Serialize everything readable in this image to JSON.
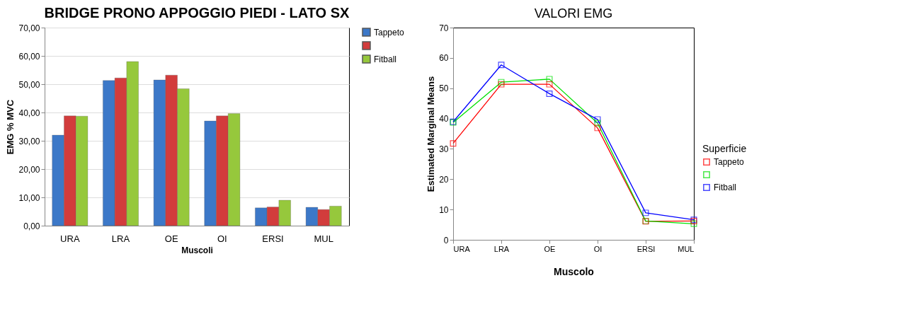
{
  "chart_data": [
    {
      "type": "bar",
      "title": "BRIDGE PRONO APPOGGIO PIEDI - LATO SX",
      "xlabel": "Muscoli",
      "ylabel": "EMG % MVC",
      "categories": [
        "URA",
        "LRA",
        "OE",
        "OI",
        "ERSI",
        "MUL"
      ],
      "series": [
        {
          "name": "Tappeto",
          "color": "#3c78c8",
          "values": [
            32.0,
            51.3,
            51.5,
            37.0,
            6.3,
            6.5
          ]
        },
        {
          "color": "#d23c3c",
          "values": [
            38.8,
            52.2,
            53.2,
            38.8,
            6.6,
            5.7
          ]
        },
        {
          "name": "Fitball",
          "color": "#96c83c",
          "values": [
            38.7,
            58.0,
            48.4,
            39.6,
            9.0,
            6.9
          ]
        }
      ],
      "ylim": [
        0,
        70
      ],
      "yticks": [
        {
          "value": 0,
          "label": "0,00"
        },
        {
          "value": 10,
          "label": "10,00"
        },
        {
          "value": 20,
          "label": "20,00"
        },
        {
          "value": 30,
          "label": "30,00"
        },
        {
          "value": 40,
          "label": "40,00"
        },
        {
          "value": 50,
          "label": "50,00"
        },
        {
          "value": 60,
          "label": "60,00"
        },
        {
          "value": 70,
          "label": "70,00"
        }
      ],
      "grid": "y",
      "legend": "right"
    },
    {
      "type": "line",
      "title": "VALORI EMG",
      "xlabel": "Muscolo",
      "ylabel": "Estimated Marginal Means",
      "legend_title": "Superficie",
      "categories": [
        "URA",
        "LRA",
        "OE",
        "OI",
        "ERSI",
        "MUL"
      ],
      "series": [
        {
          "name": "Tappeto",
          "color": "#ff0000",
          "values": [
            31.8,
            51.3,
            51.3,
            36.9,
            6.1,
            6.2
          ]
        },
        {
          "color": "#00e000",
          "values": [
            38.7,
            52.0,
            53.0,
            38.5,
            6.2,
            5.3
          ]
        },
        {
          "name": "Fitball",
          "color": "#0000ff",
          "values": [
            38.9,
            57.7,
            48.2,
            39.7,
            8.9,
            6.6
          ]
        }
      ],
      "ylim": [
        0,
        70
      ],
      "yticks": [
        0,
        10,
        20,
        30,
        40,
        50,
        60,
        70
      ],
      "grid": false,
      "legend": "bottom right",
      "marker": "square"
    }
  ]
}
